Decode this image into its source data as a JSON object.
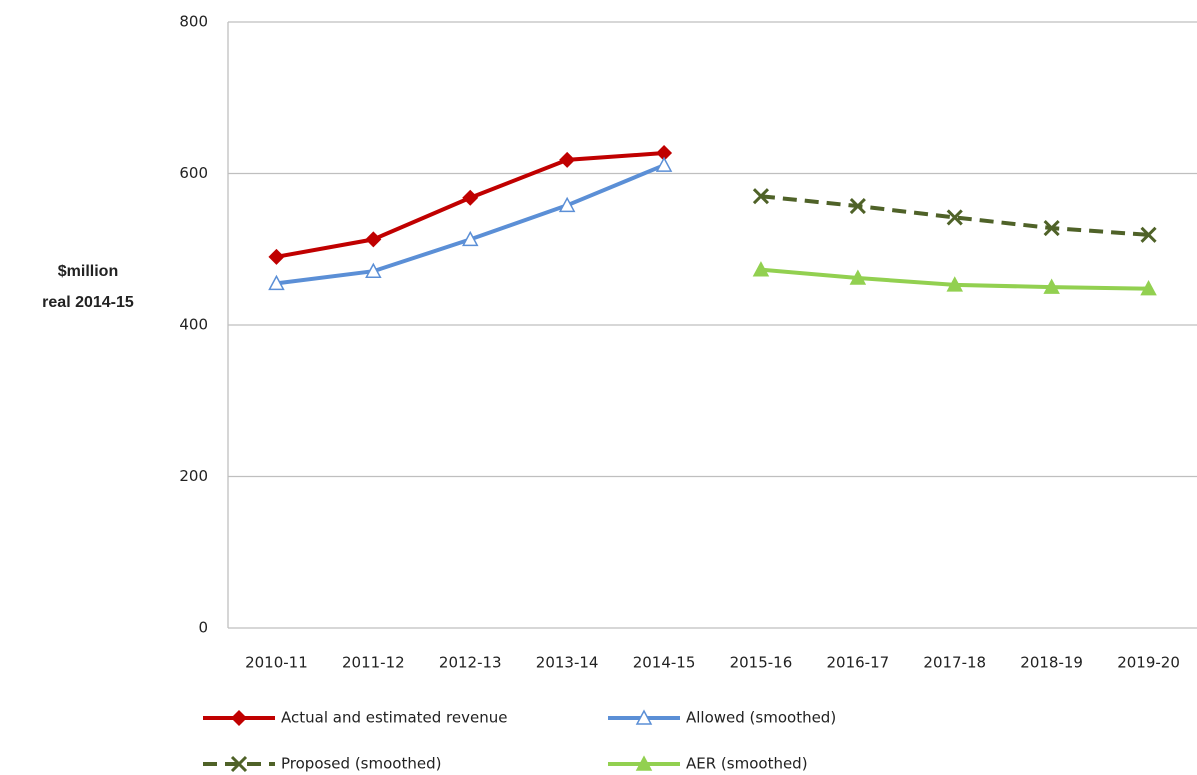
{
  "chart_data": {
    "type": "line",
    "ylabel": [
      "$million",
      "real 2014-15"
    ],
    "categories": [
      "2010-11",
      "2011-12",
      "2012-13",
      "2013-14",
      "2014-15",
      "2015-16",
      "2016-17",
      "2017-18",
      "2018-19",
      "2019-20"
    ],
    "series": [
      {
        "name": "Actual and estimated revenue",
        "color": "#c00000",
        "marker": "diamond",
        "dashed": false,
        "values": [
          490,
          513,
          568,
          618,
          627,
          null,
          null,
          null,
          null,
          null
        ]
      },
      {
        "name": "Allowed (smoothed)",
        "color": "#5b8fd6",
        "marker": "triangle-open",
        "dashed": false,
        "values": [
          455,
          471,
          513,
          558,
          611,
          null,
          null,
          null,
          null,
          null
        ]
      },
      {
        "name": "Proposed (smoothed)",
        "color": "#4f6228",
        "marker": "x",
        "dashed": true,
        "values": [
          null,
          null,
          null,
          null,
          null,
          570,
          557,
          542,
          528,
          519
        ]
      },
      {
        "name": "AER (smoothed)",
        "color": "#92d050",
        "marker": "triangle",
        "dashed": false,
        "values": [
          null,
          null,
          null,
          null,
          null,
          473,
          462,
          453,
          450,
          448
        ]
      }
    ],
    "ylim": [
      0,
      800
    ],
    "yticks": [
      0,
      200,
      400,
      600,
      800
    ],
    "grid": true
  }
}
